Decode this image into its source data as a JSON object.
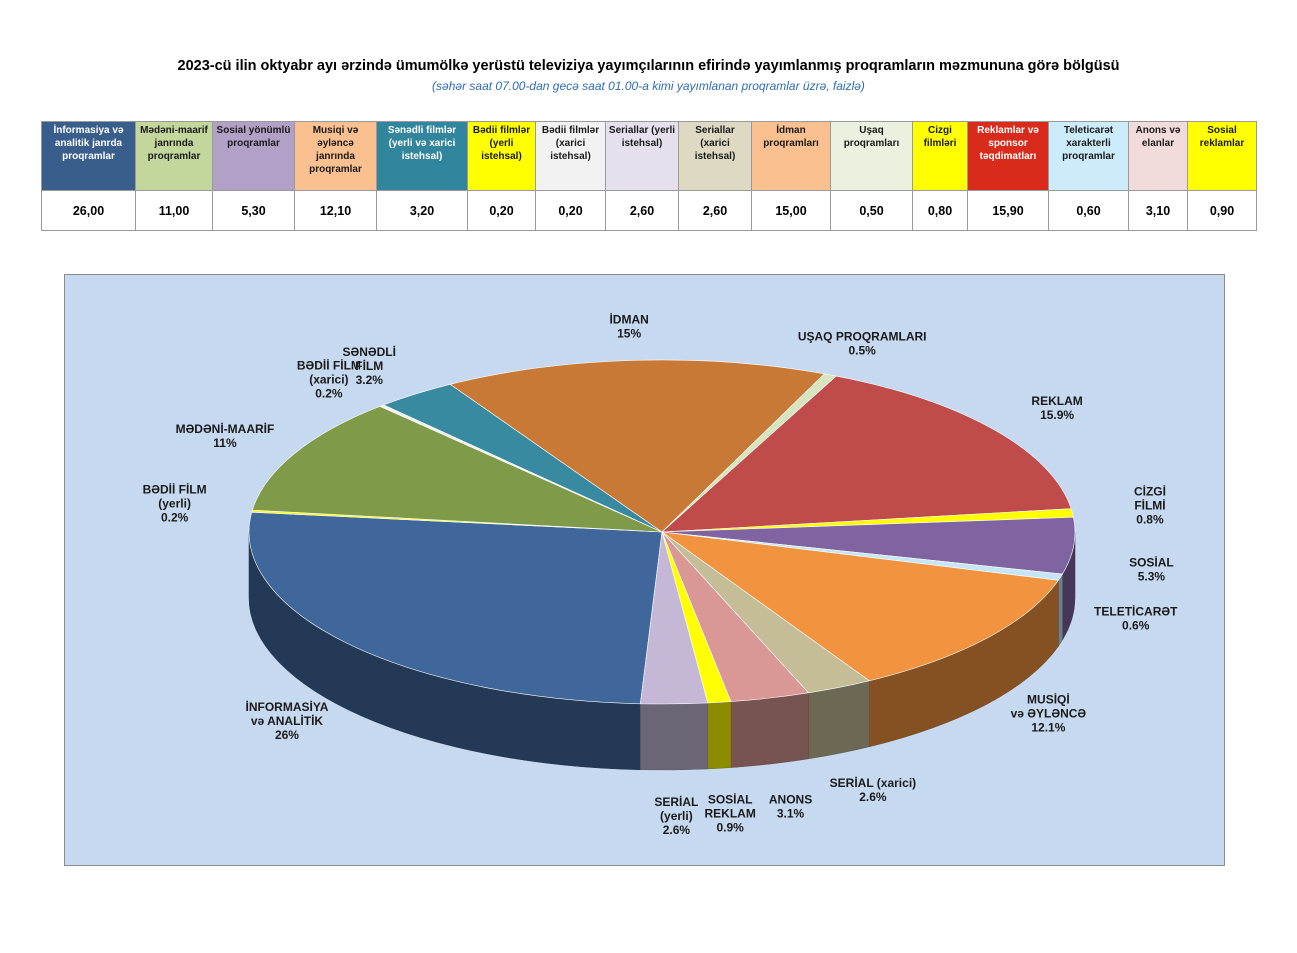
{
  "title": "2023-cü ilin oktyabr ayı ərzində ümumölkə yerüstü televiziya yayımçılarının efirində yayımlanmış proqramların məzmununa görə bölgüsü",
  "subtitle": "(səhər saat 07.00-dan gecə saat 01.00-a kimi yayımlanan proqramlar üzrə, faizlə)",
  "table": {
    "headers": [
      {
        "label": "İnformasiya və analitik janrda proqramlar",
        "bg": "#3a5e8c",
        "fg": "#ffffff"
      },
      {
        "label": "Mədəni-maarif janrında proqramlar",
        "bg": "#c3d69b",
        "fg": "#1a1a1a"
      },
      {
        "label": "Sosial yönümlü proqramlar",
        "bg": "#b2a1c7",
        "fg": "#1a1a1a"
      },
      {
        "label": "Musiqi və əyləncə janrında proqramlar",
        "bg": "#fac090",
        "fg": "#1a1a1a"
      },
      {
        "label": "Sənədli filmlər (yerli və xarici istehsal)",
        "bg": "#31859c",
        "fg": "#ffffff"
      },
      {
        "label": "Bədii filmlər (yerli istehsal)",
        "bg": "#ffff00",
        "fg": "#1a1a1a"
      },
      {
        "label": "Bədii filmlər (xarici istehsal)",
        "bg": "#f2f2f2",
        "fg": "#1a1a1a"
      },
      {
        "label": "Seriallar (yerli istehsal)",
        "bg": "#e5e0ec",
        "fg": "#1a1a1a"
      },
      {
        "label": "Seriallar (xarici istehsal)",
        "bg": "#ddd9c3",
        "fg": "#1a1a1a"
      },
      {
        "label": "İdman proqramları",
        "bg": "#fac090",
        "fg": "#1a1a1a"
      },
      {
        "label": "Uşaq proqramları",
        "bg": "#ebf1de",
        "fg": "#1a1a1a"
      },
      {
        "label": "Cizgi filmləri",
        "bg": "#ffff00",
        "fg": "#1a1a1a"
      },
      {
        "label": "Reklamlar və sponsor təqdimatları",
        "bg": "#d92b1c",
        "fg": "#ffffff"
      },
      {
        "label": "Teleticarət xarakterli proqramlar",
        "bg": "#ccebfb",
        "fg": "#1a1a1a"
      },
      {
        "label": "Anons və elanlar",
        "bg": "#f2dcdb",
        "fg": "#1a1a1a"
      },
      {
        "label": "Sosial reklamlar",
        "bg": "#ffff00",
        "fg": "#1a1a1a"
      }
    ],
    "values": [
      "26,00",
      "11,00",
      "5,30",
      "12,10",
      "3,20",
      "0,20",
      "0,20",
      "2,60",
      "2,60",
      "15,00",
      "0,50",
      "0,80",
      "15,90",
      "0,60",
      "3,10",
      "0,90"
    ]
  },
  "chart_data": {
    "type": "pie",
    "title": "",
    "legend": "none",
    "slices": [
      {
        "label": [
          "İNFORMASİYA",
          "və ANALİTİK",
          "26%"
        ],
        "value": 26.0,
        "color": "#3f679b"
      },
      {
        "label": [
          "BƏDİİ FİLM",
          "(yerli)",
          "0.2%"
        ],
        "value": 0.2,
        "color": "#ffff00"
      },
      {
        "label": [
          "MƏDƏNİ-MAARİF",
          "11%"
        ],
        "value": 11.0,
        "color": "#7f9a48"
      },
      {
        "label": [
          "BƏDİİ FİLM",
          "(xarici)",
          "0.2%"
        ],
        "value": 0.2,
        "color": "#f2f2f2"
      },
      {
        "label": [
          "SƏNƏDLİ",
          "FİLM",
          "3.2%"
        ],
        "value": 3.2,
        "color": "#378a9f"
      },
      {
        "label": [
          "İDMAN",
          "15%"
        ],
        "value": 15.0,
        "color": "#c97936"
      },
      {
        "label": [
          "UŞAQ PROQRAMLARI",
          "0.5%"
        ],
        "value": 0.5,
        "color": "#d7e4bd"
      },
      {
        "label": [
          "REKLAM",
          "15.9%"
        ],
        "value": 15.9,
        "color": "#bf4b4b"
      },
      {
        "label": [
          "CİZGİ",
          "FİLMİ",
          "0.8%"
        ],
        "value": 0.8,
        "color": "#ffff00"
      },
      {
        "label": [
          "SOSİAL",
          "5.3%"
        ],
        "value": 5.3,
        "color": "#8064a2"
      },
      {
        "label": [
          "TELETİCARƏT",
          "0.6%"
        ],
        "value": 0.6,
        "color": "#c6e6f8"
      },
      {
        "label": [
          "MUSİQİ",
          "və ƏYLƏNCƏ",
          "12.1%"
        ],
        "value": 12.1,
        "color": "#f29340"
      },
      {
        "label": [
          "SERİAL (xarici)",
          "2.6%"
        ],
        "value": 2.6,
        "color": "#c4bd97"
      },
      {
        "label": [
          "ANONS",
          "3.1%"
        ],
        "value": 3.1,
        "color": "#d99795"
      },
      {
        "label": [
          "SOSİAL",
          "REKLAM",
          "0.9%"
        ],
        "value": 0.9,
        "color": "#ffff00"
      },
      {
        "label": [
          "SERİAL",
          "(yerli)",
          "2.6%"
        ],
        "value": 2.6,
        "color": "#c4b8d6"
      }
    ]
  }
}
